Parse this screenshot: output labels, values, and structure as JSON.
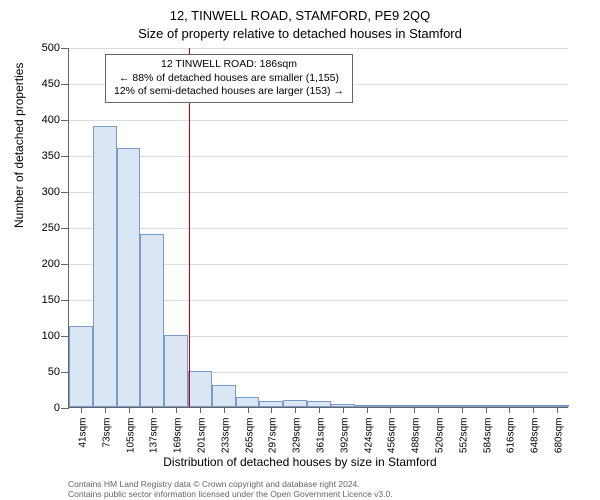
{
  "header": {
    "address": "12, TINWELL ROAD, STAMFORD, PE9 2QQ",
    "subtitle": "Size of property relative to detached houses in Stamford"
  },
  "chart": {
    "type": "histogram",
    "y_axis_title": "Number of detached properties",
    "x_axis_title": "Distribution of detached houses by size in Stamford",
    "ylim": [
      0,
      500
    ],
    "ytick_step": 50,
    "yticks": [
      0,
      50,
      100,
      150,
      200,
      250,
      300,
      350,
      400,
      450,
      500
    ],
    "x_labels": [
      "41sqm",
      "73sqm",
      "105sqm",
      "137sqm",
      "169sqm",
      "201sqm",
      "233sqm",
      "265sqm",
      "297sqm",
      "329sqm",
      "361sqm",
      "392sqm",
      "424sqm",
      "456sqm",
      "488sqm",
      "520sqm",
      "552sqm",
      "584sqm",
      "616sqm",
      "648sqm",
      "680sqm"
    ],
    "values": [
      112,
      390,
      360,
      240,
      100,
      50,
      30,
      14,
      8,
      10,
      8,
      4,
      2,
      3,
      0,
      1,
      0,
      0,
      0,
      0,
      2
    ],
    "bar_fill": "#dbe6f5",
    "bar_stroke": "#7a9acb",
    "grid_color": "#dddddd",
    "axis_color": "#666666",
    "background": "#ffffff",
    "marker": {
      "position_sqm": 186,
      "color": "#cc0000"
    },
    "annotation": {
      "line1": "12 TINWELL ROAD: 186sqm",
      "line2": "← 88% of detached houses are smaller (1,155)",
      "line3": "12% of semi-detached houses are larger (153) →",
      "border_color": "#666666",
      "bg": "#ffffff"
    }
  },
  "footer": {
    "line1": "Contains HM Land Registry data © Crown copyright and database right 2024.",
    "line2": "Contains public sector information licensed under the Open Government Licence v3.0."
  }
}
